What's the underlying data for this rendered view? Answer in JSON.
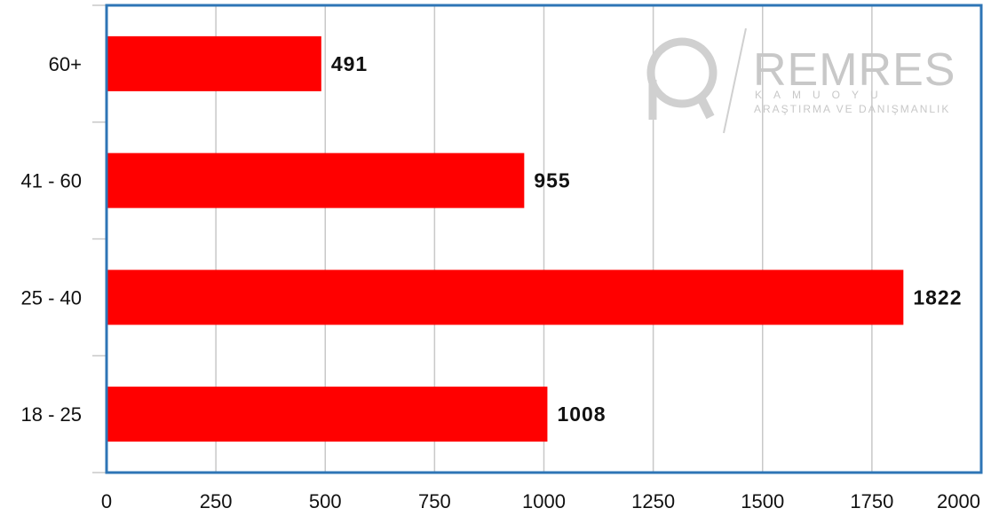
{
  "chart_data": {
    "type": "bar",
    "orientation": "horizontal",
    "categories": [
      "60+",
      "41 - 60",
      "25 - 40",
      "18 - 25"
    ],
    "values": [
      491,
      955,
      1822,
      1008
    ],
    "xlim": [
      0,
      2000
    ],
    "xticks": [
      0,
      250,
      500,
      750,
      1000,
      1250,
      1500,
      1750,
      2000
    ],
    "grid": "vertical",
    "bar_color": "#ff0000",
    "frame_color": "#2e75b6",
    "data_labels": [
      "491",
      "955",
      "1822",
      "1008"
    ]
  },
  "watermark": {
    "brand": "REMRES",
    "line1": "KAMUOYU",
    "line2": "ARAŞTIRMA VE DANIŞMANLIK"
  }
}
